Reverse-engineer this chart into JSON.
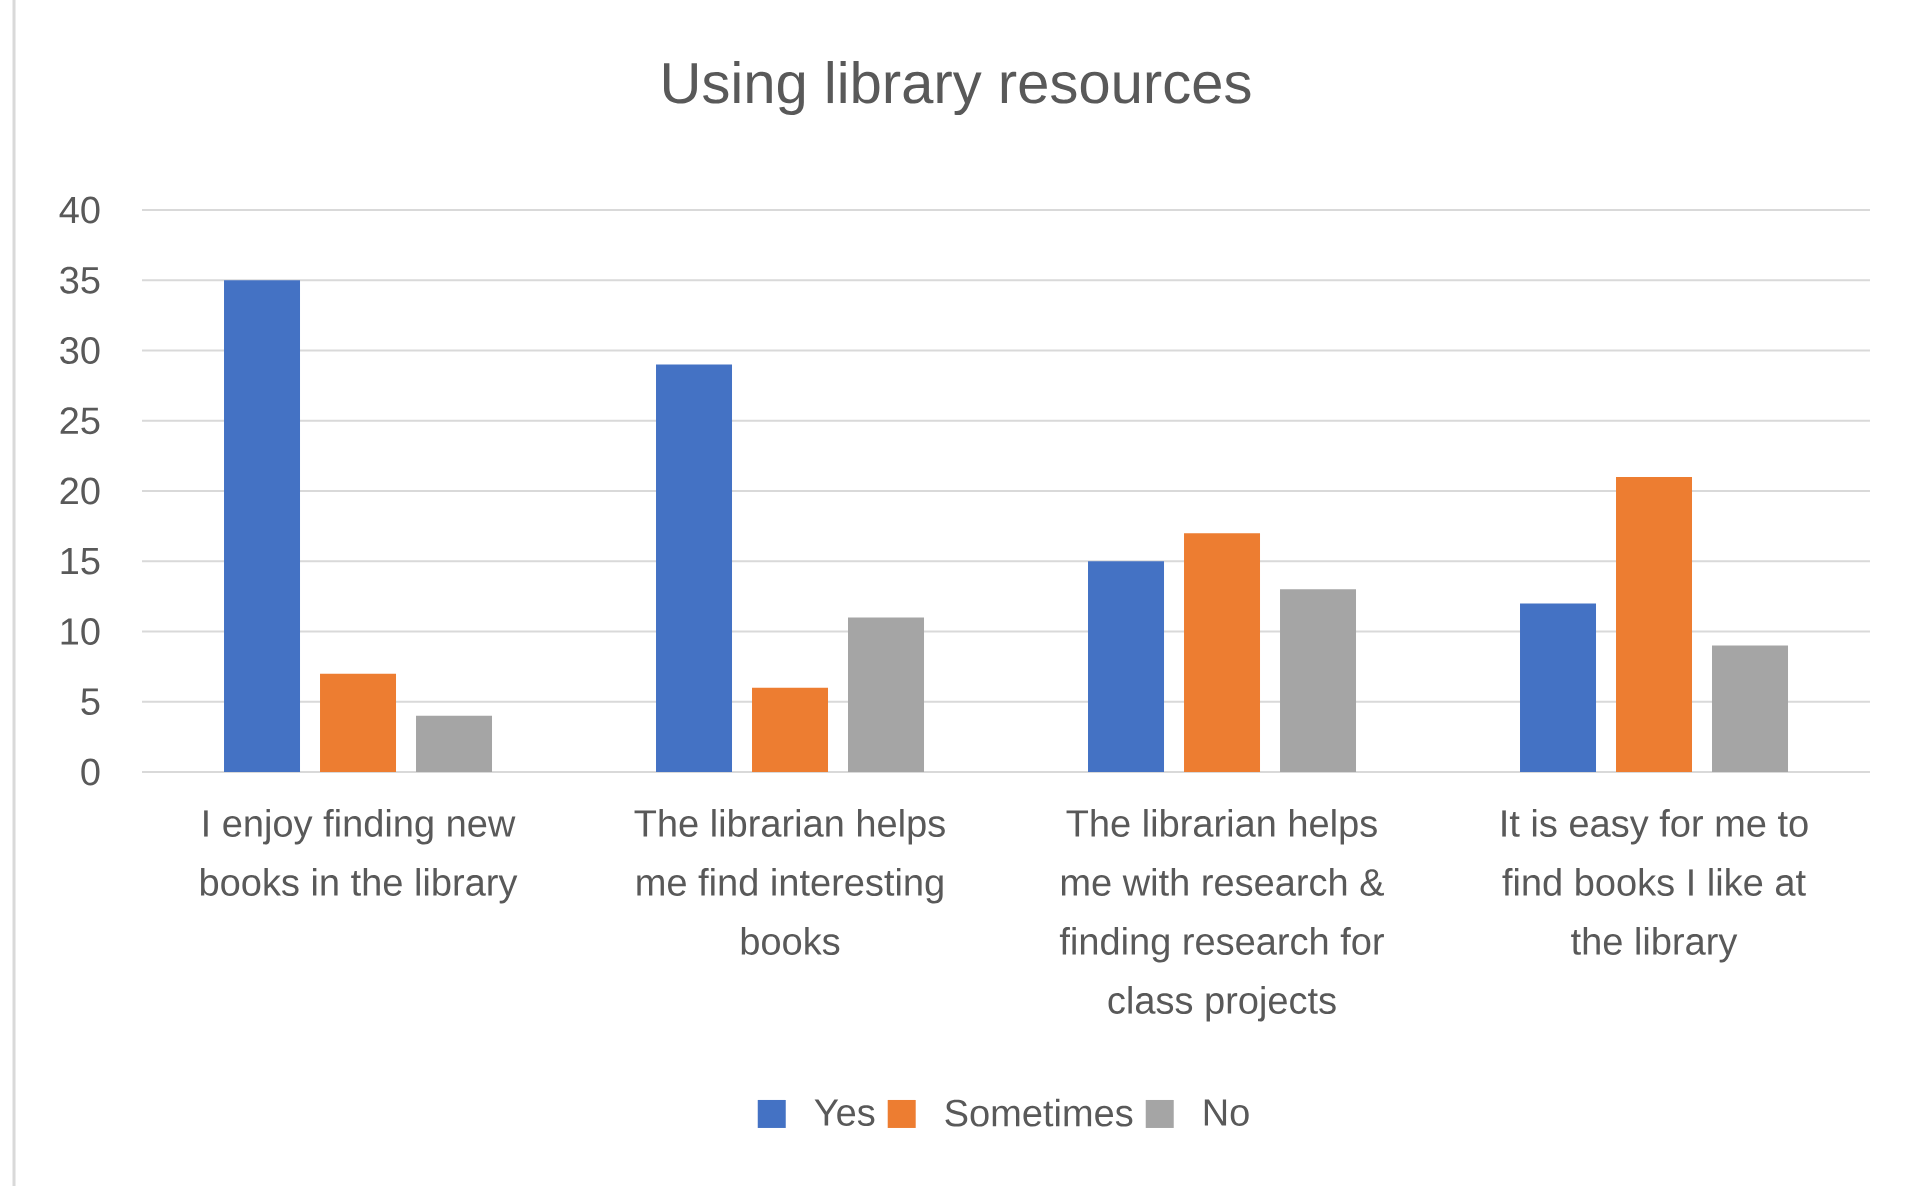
{
  "chart_data": {
    "type": "bar",
    "title": "Using library resources",
    "categories": [
      "I enjoy finding new books in the library",
      "The librarian helps me find interesting books",
      "The librarian helps me with research & finding research for class projects",
      "It is easy for me to find books I like at the library"
    ],
    "series": [
      {
        "name": "Yes",
        "color": "#4472c4",
        "values": [
          35,
          29,
          15,
          12
        ]
      },
      {
        "name": "Sometimes",
        "color": "#ed7d31",
        "values": [
          7,
          6,
          17,
          21
        ]
      },
      {
        "name": "No",
        "color": "#a5a5a5",
        "values": [
          4,
          11,
          13,
          9
        ]
      }
    ],
    "ylim": [
      0,
      40
    ],
    "yticks": [
      0,
      5,
      10,
      15,
      20,
      25,
      30,
      35,
      40
    ],
    "grid": "y",
    "legend": "bottom"
  }
}
